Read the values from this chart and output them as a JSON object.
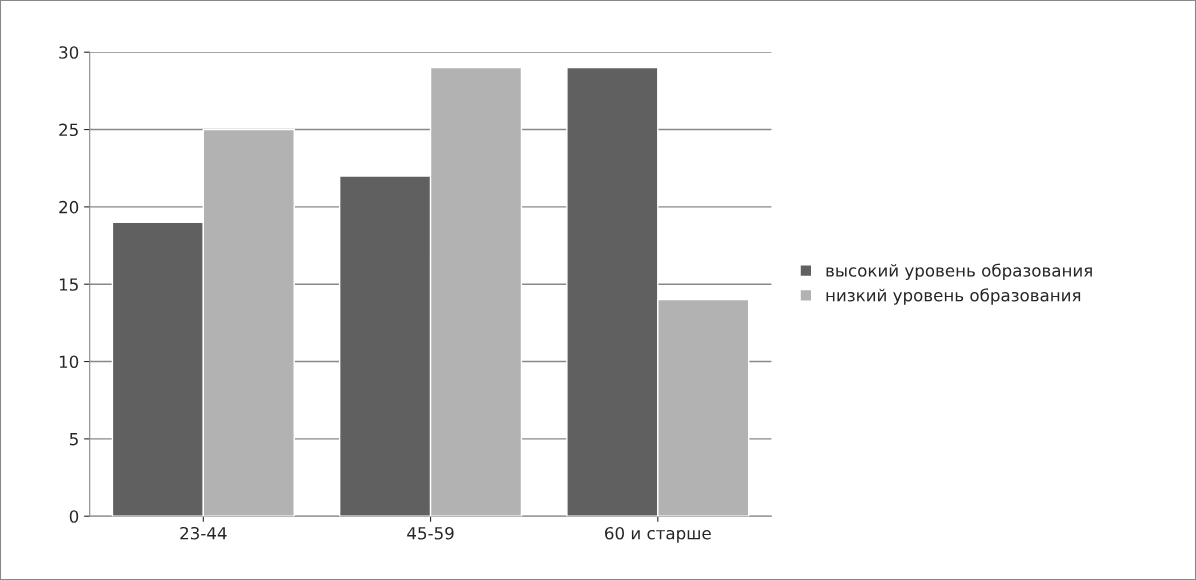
{
  "chart_data": {
    "type": "bar",
    "categories": [
      "23-44",
      "45-59",
      "60 и старше"
    ],
    "series": [
      {
        "name": "высокий уровень образования",
        "color": "#606060",
        "values": [
          19,
          22,
          29
        ]
      },
      {
        "name": "низкий уровень образования",
        "color": "#b2b2b2",
        "values": [
          25,
          29,
          14
        ]
      }
    ],
    "ylim": [
      0,
      30
    ],
    "yticks": [
      0,
      5,
      10,
      15,
      20,
      25,
      30
    ],
    "grid": "y",
    "legend": "right"
  }
}
